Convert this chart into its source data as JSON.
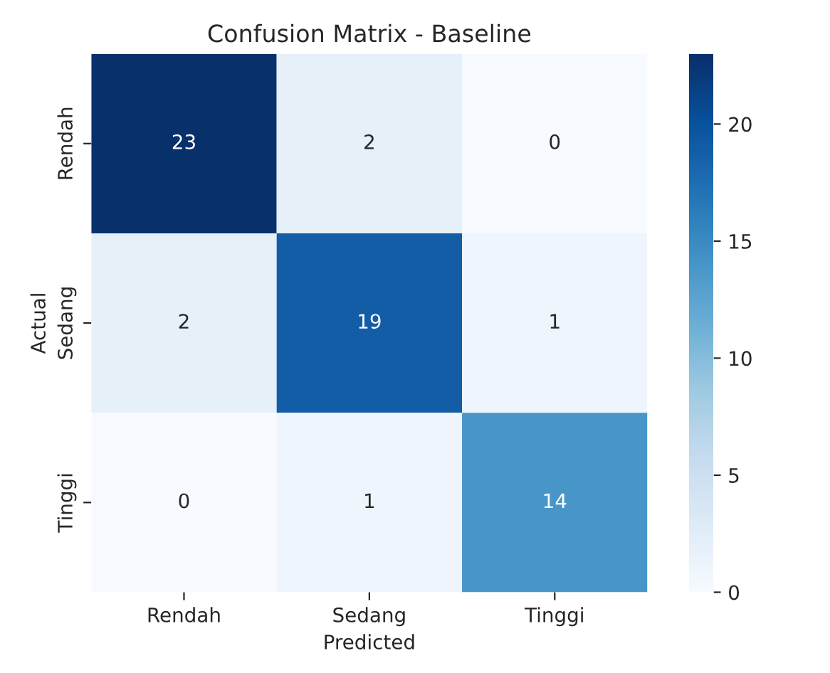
{
  "chart_data": {
    "type": "heatmap",
    "title": "Confusion Matrix - Baseline",
    "xlabel": "Predicted",
    "ylabel": "Actual",
    "categories": [
      "Rendah",
      "Sedang",
      "Tinggi"
    ],
    "y_categories": [
      "Rendah",
      "Sedang",
      "Tinggi"
    ],
    "cells": [
      [
        23,
        2,
        0
      ],
      [
        2,
        19,
        1
      ],
      [
        0,
        1,
        14
      ]
    ],
    "data_labels": true,
    "clim": [
      0,
      23
    ],
    "cticks": [
      0,
      5,
      10,
      15,
      20
    ]
  }
}
